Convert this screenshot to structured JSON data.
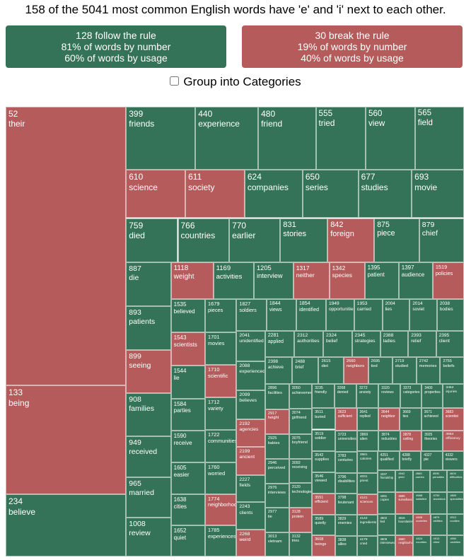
{
  "headline": "158 of the 5041 most common English words have 'e' and 'i' next to each other.",
  "summary": {
    "follow": {
      "line1": "128 follow the rule",
      "line2": "81% of words by number",
      "line3": "60% of words by usage",
      "color": "#347357"
    },
    "break": {
      "line1": "30 break the rule",
      "line2": "19% of words by number",
      "line3": "40% of words by usage",
      "color": "#b55b5b"
    }
  },
  "group_toggle": {
    "label": "Group into Categories",
    "checked": false
  },
  "chart_data": {
    "type": "treemap",
    "title": "158 of the 5041 most common English words have 'e' and 'i' next to each other.",
    "colors": {
      "follow": "#347357",
      "break": "#b55b5b"
    },
    "value_meaning": "frequency rank (lower rank = larger area)",
    "items": [
      {
        "rank": 52,
        "word": "their",
        "rule": "break"
      },
      {
        "rank": 133,
        "word": "being",
        "rule": "break"
      },
      {
        "rank": 234,
        "word": "believe",
        "rule": "follow"
      },
      {
        "rank": 399,
        "word": "friends",
        "rule": "follow"
      },
      {
        "rank": 440,
        "word": "experience",
        "rule": "follow"
      },
      {
        "rank": 480,
        "word": "friend",
        "rule": "follow"
      },
      {
        "rank": 555,
        "word": "tried",
        "rule": "follow"
      },
      {
        "rank": 560,
        "word": "view",
        "rule": "follow"
      },
      {
        "rank": 565,
        "word": "field",
        "rule": "follow"
      },
      {
        "rank": 610,
        "word": "science",
        "rule": "break"
      },
      {
        "rank": 611,
        "word": "society",
        "rule": "break"
      },
      {
        "rank": 624,
        "word": "companies",
        "rule": "follow"
      },
      {
        "rank": 650,
        "word": "series",
        "rule": "follow"
      },
      {
        "rank": 677,
        "word": "studies",
        "rule": "follow"
      },
      {
        "rank": 693,
        "word": "movie",
        "rule": "follow"
      },
      {
        "rank": 759,
        "word": "died",
        "rule": "follow"
      },
      {
        "rank": 766,
        "word": "countries",
        "rule": "follow"
      },
      {
        "rank": 770,
        "word": "earlier",
        "rule": "follow"
      },
      {
        "rank": 831,
        "word": "stories",
        "rule": "follow"
      },
      {
        "rank": 842,
        "word": "foreign",
        "rule": "break"
      },
      {
        "rank": 875,
        "word": "piece",
        "rule": "follow"
      },
      {
        "rank": 965,
        "word": "married",
        "rule": "follow"
      },
      {
        "rank": 1008,
        "word": "review",
        "rule": "follow"
      },
      {
        "rank": 1118,
        "word": "weight",
        "rule": "break"
      },
      {
        "rank": 1169,
        "word": "activities",
        "rule": "follow"
      },
      {
        "rank": 1205,
        "word": "interview",
        "rule": "follow"
      },
      {
        "rank": 1317,
        "word": "neither",
        "rule": "break"
      },
      {
        "rank": 1342,
        "word": "species",
        "rule": "break"
      },
      {
        "rank": 879,
        "word": "chief",
        "rule": "follow"
      },
      {
        "rank": 887,
        "word": "die",
        "rule": "follow"
      },
      {
        "rank": 893,
        "word": "patients",
        "rule": "follow"
      },
      {
        "rank": 899,
        "word": "seeing",
        "rule": "break"
      },
      {
        "rank": 908,
        "word": "families",
        "rule": "follow"
      },
      {
        "rank": 949,
        "word": "received",
        "rule": "follow"
      },
      {
        "rank": 1395,
        "word": "patient",
        "rule": "follow"
      },
      {
        "rank": 1605,
        "word": "easier",
        "rule": "follow"
      },
      {
        "rank": 1638,
        "word": "cities",
        "rule": "follow"
      },
      {
        "rank": 1652,
        "word": "quiet",
        "rule": "follow"
      },
      {
        "rank": 1679,
        "word": "pieces",
        "rule": "follow"
      },
      {
        "rank": 1701,
        "word": "movies",
        "rule": "follow"
      },
      {
        "rank": 1710,
        "word": "scientific",
        "rule": "break"
      },
      {
        "rank": 1712,
        "word": "variety",
        "rule": "follow"
      },
      {
        "rank": 1722,
        "word": "communities",
        "rule": "follow"
      },
      {
        "rank": 1397,
        "word": "audience",
        "rule": "follow"
      },
      {
        "rank": 1760,
        "word": "worried",
        "rule": "follow"
      },
      {
        "rank": 1953,
        "word": "carried",
        "rule": "follow"
      },
      {
        "rank": 2004,
        "word": "lies",
        "rule": "follow"
      },
      {
        "rank": 2014,
        "word": "soviet",
        "rule": "follow"
      },
      {
        "rank": 2038,
        "word": "bodies",
        "rule": "follow"
      },
      {
        "rank": 2041,
        "word": "unidentified",
        "rule": "follow"
      },
      {
        "rank": 2088,
        "word": "experienced",
        "rule": "follow"
      },
      {
        "rank": 2099,
        "word": "believes",
        "rule": "follow"
      },
      {
        "rank": 2192,
        "word": "agencies",
        "rule": "break"
      },
      {
        "rank": 1519,
        "word": "policies",
        "rule": "break"
      },
      {
        "rank": 1535,
        "word": "believed",
        "rule": "follow"
      },
      {
        "rank": 1543,
        "word": "scientists",
        "rule": "break"
      },
      {
        "rank": 1544,
        "word": "lie",
        "rule": "follow"
      },
      {
        "rank": 1584,
        "word": "parties",
        "rule": "follow"
      },
      {
        "rank": 1590,
        "word": "receive",
        "rule": "follow"
      },
      {
        "rank": 1774,
        "word": "neighborhood",
        "rule": "break"
      },
      {
        "rank": 1785,
        "word": "experiences",
        "rule": "follow"
      },
      {
        "rank": 1827,
        "word": "soldiers",
        "rule": "follow"
      },
      {
        "rank": 1844,
        "word": "views",
        "rule": "follow"
      },
      {
        "rank": 1854,
        "word": "identified",
        "rule": "follow"
      },
      {
        "rank": 1949,
        "word": "opportunities",
        "rule": "follow"
      },
      {
        "rank": 2199,
        "word": "ancient",
        "rule": "break"
      },
      {
        "rank": 2227,
        "word": "fields",
        "rule": "follow"
      },
      {
        "rank": 2243,
        "word": "clients",
        "rule": "follow"
      },
      {
        "rank": 2268,
        "word": "weird",
        "rule": "break"
      },
      {
        "rank": 2281,
        "word": "applied",
        "rule": "follow"
      },
      {
        "rank": 2312,
        "word": "authorities",
        "rule": "follow"
      },
      {
        "rank": 2324,
        "word": "belief",
        "rule": "follow"
      },
      {
        "rank": 2345,
        "word": "strategies",
        "rule": "follow"
      },
      {
        "rank": 2388,
        "word": "ladies",
        "rule": "follow"
      },
      {
        "rank": 2393,
        "word": "relief",
        "rule": "follow"
      },
      {
        "rank": 2395,
        "word": "client",
        "rule": "follow"
      },
      {
        "rank": 2398,
        "word": "achieve",
        "rule": "follow"
      },
      {
        "rank": 2488,
        "word": "brief",
        "rule": "follow"
      },
      {
        "rank": 2615,
        "word": "diet",
        "rule": "follow"
      },
      {
        "rank": 2660,
        "word": "neighbors",
        "rule": "break"
      },
      {
        "rank": 2695,
        "word": "tied",
        "rule": "follow"
      },
      {
        "rank": 2719,
        "word": "studied",
        "rule": "follow"
      },
      {
        "rank": 2742,
        "word": "memories",
        "rule": "follow"
      },
      {
        "rank": 2755,
        "word": "beliefs",
        "rule": "follow"
      },
      {
        "rank": 2896,
        "word": "facilities",
        "rule": "follow"
      },
      {
        "rank": 2917,
        "word": "height",
        "rule": "break"
      },
      {
        "rank": 2925,
        "word": "babies",
        "rule": "follow"
      },
      {
        "rank": 2946,
        "word": "perceived",
        "rule": "follow"
      },
      {
        "rank": 2976,
        "word": "interviews",
        "rule": "follow"
      },
      {
        "rank": 2977,
        "word": "tie",
        "rule": "follow"
      },
      {
        "rank": 3013,
        "word": "vietnam",
        "rule": "follow"
      },
      {
        "rank": 3050,
        "word": "achievement",
        "rule": "follow"
      },
      {
        "rank": 3074,
        "word": "girlfriend",
        "rule": "follow"
      },
      {
        "rank": 3075,
        "word": "boyfriend",
        "rule": "follow"
      },
      {
        "rank": 3092,
        "word": "receiving",
        "rule": "follow"
      },
      {
        "rank": 3120,
        "word": "technologies",
        "rule": "follow"
      },
      {
        "rank": 3128,
        "word": "protein",
        "rule": "break"
      },
      {
        "rank": 3132,
        "word": "tries",
        "rule": "follow"
      },
      {
        "rank": 3235,
        "word": "friendly",
        "rule": "follow"
      },
      {
        "rank": 3268,
        "word": "denied",
        "rule": "follow"
      },
      {
        "rank": 3272,
        "word": "anxiety",
        "rule": "follow"
      },
      {
        "rank": 3320,
        "word": "reviews",
        "rule": "follow"
      },
      {
        "rank": 3373,
        "word": "categories",
        "rule": "follow"
      },
      {
        "rank": 3400,
        "word": "properties",
        "rule": "follow"
      },
      {
        "rank": 3464,
        "word": "injuries",
        "rule": "follow"
      },
      {
        "rank": 3511,
        "word": "buried",
        "rule": "follow"
      },
      {
        "rank": 3519,
        "word": "soldier",
        "rule": "follow"
      },
      {
        "rank": 3542,
        "word": "supplies",
        "rule": "follow"
      },
      {
        "rank": 3546,
        "word": "viewed",
        "rule": "follow"
      },
      {
        "rank": 3551,
        "word": "efficient",
        "rule": "break"
      },
      {
        "rank": 3589,
        "word": "quietly",
        "rule": "follow"
      },
      {
        "rank": 3608,
        "word": "beings",
        "rule": "break"
      },
      {
        "rank": 3623,
        "word": "sufficient",
        "rule": "break"
      },
      {
        "rank": 3641,
        "word": "replied",
        "rule": "follow"
      },
      {
        "rank": 3644,
        "word": "neighbor",
        "rule": "break"
      },
      {
        "rank": 3669,
        "word": "ties",
        "rule": "follow"
      },
      {
        "rank": 3671,
        "word": "achieved",
        "rule": "follow"
      },
      {
        "rank": 3683,
        "word": "scientist",
        "rule": "break"
      },
      {
        "rank": 3723,
        "word": "universities",
        "rule": "follow"
      },
      {
        "rank": 3783,
        "word": "centuries",
        "rule": "follow"
      },
      {
        "rank": 3796,
        "word": "disabilities",
        "rule": "follow"
      },
      {
        "rank": 3798,
        "word": "lieutenant",
        "rule": "follow"
      },
      {
        "rank": 3829,
        "word": "enemies",
        "rule": "follow"
      },
      {
        "rank": 3838,
        "word": "allies",
        "rule": "follow"
      },
      {
        "rank": 3869,
        "word": "alien",
        "rule": "follow"
      },
      {
        "rank": 3874,
        "word": "industries",
        "rule": "follow"
      },
      {
        "rank": 3878,
        "word": "ceiling",
        "rule": "break"
      },
      {
        "rank": 3925,
        "word": "theories",
        "rule": "follow"
      },
      {
        "rank": 3964,
        "word": "efficiency",
        "rule": "break"
      },
      {
        "rank": 3981,
        "word": "calories",
        "rule": "follow"
      },
      {
        "rank": 4031,
        "word": "priest",
        "rule": "follow"
      },
      {
        "rank": 4141,
        "word": "sciences",
        "rule": "break"
      },
      {
        "rank": 4142,
        "word": "ingredients",
        "rule": "follow"
      },
      {
        "rank": 4179,
        "word": "cried",
        "rule": "follow"
      },
      {
        "rank": 4251,
        "word": "qualified",
        "rule": "follow"
      },
      {
        "rank": 4288,
        "word": "briefly",
        "rule": "follow"
      },
      {
        "rank": 4327,
        "word": "pie",
        "rule": "follow"
      },
      {
        "rank": 4332,
        "word": "viewers",
        "rule": "follow"
      },
      {
        "rank": 4337,
        "word": "friendship",
        "rule": "follow"
      },
      {
        "rank": 4391,
        "word": "copies",
        "rule": "follow"
      },
      {
        "rank": 4502,
        "word": "lied",
        "rule": "follow"
      },
      {
        "rank": 4509,
        "word": "interviewed",
        "rule": "follow"
      },
      {
        "rank": 4542,
        "word": "yield",
        "rule": "follow"
      },
      {
        "rank": 4569,
        "word": "carries",
        "rule": "follow"
      },
      {
        "rank": 4595,
        "word": "penalties",
        "rule": "follow"
      },
      {
        "rank": 4600,
        "word": "difficulties",
        "rule": "follow"
      },
      {
        "rank": 4606,
        "word": "surveillance",
        "rule": "break"
      },
      {
        "rank": 4616,
        "word": "boundaries",
        "rule": "follow"
      },
      {
        "rank": 4660,
        "word": "neighborhoods",
        "rule": "break"
      },
      {
        "rank": 4668,
        "word": "satisfied",
        "rule": "follow"
      },
      {
        "rank": 4700,
        "word": "ancestors",
        "rule": "follow"
      },
      {
        "rank": 4800,
        "word": "specialties",
        "rule": "follow"
      },
      {
        "rank": 4808,
        "word": "societies",
        "rule": "break"
      },
      {
        "rank": 4824,
        "word": "counties",
        "rule": "follow"
      },
      {
        "rank": 4879,
        "word": "abilities",
        "rule": "follow"
      },
      {
        "rank": 4912,
        "word": "cookies",
        "rule": "follow"
      },
      {
        "rank": 4913,
        "word": "dried",
        "rule": "follow"
      },
      {
        "rank": 4990,
        "word": "varieties",
        "rule": "follow"
      }
    ]
  }
}
